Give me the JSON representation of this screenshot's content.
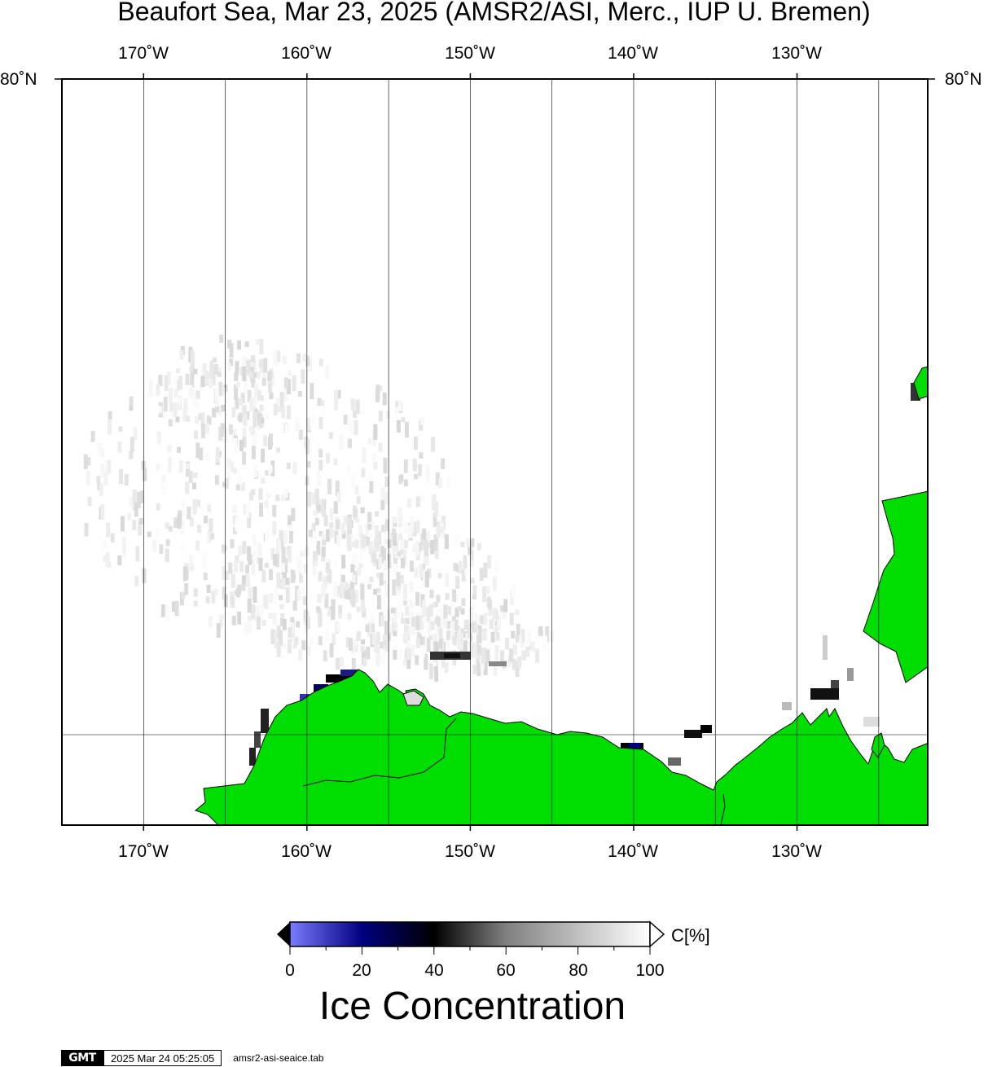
{
  "title": "Beaufort Sea, Mar 23, 2025 (AMSR2/ASI, Merc., IUP U. Bremen)",
  "map": {
    "lon_ticks": [
      "170˚W",
      "160˚W",
      "150˚W",
      "140˚W",
      "130˚W"
    ],
    "lon_values": [
      -170,
      -160,
      -150,
      -140,
      -130
    ],
    "extra_meridians": [
      -165,
      -155,
      -145,
      -135,
      -125
    ],
    "lat_label_left": "80˚N",
    "lat_label_right": "80˚N",
    "lon_range": [
      -175,
      -122
    ],
    "land_color": "#00dd00",
    "ocean_color": "#ffffff"
  },
  "colorbar": {
    "ticks": [
      "0",
      "20",
      "40",
      "60",
      "80",
      "100"
    ],
    "unit": "C[%]",
    "title": "Ice Concentration",
    "stops": [
      "#7b7bff",
      "#000080",
      "#000000",
      "#808080",
      "#ffffff"
    ]
  },
  "footer": {
    "logo": "GMT",
    "timestamp": "2025 Mar 24 05:25:05",
    "script": "amsr2-asi-seaice.tab"
  }
}
